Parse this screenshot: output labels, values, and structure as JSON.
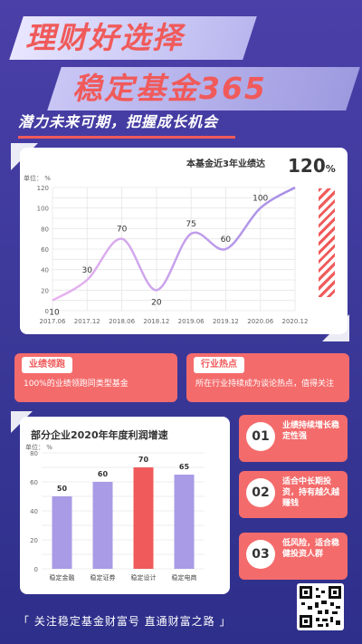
{
  "header": {
    "title_line1": "理财好选择",
    "title_line2": "稳定基金365",
    "subtitle": "潜力未来可期，把握成长机会"
  },
  "line_panel": {
    "title": "本基金近3年业绩达",
    "big_value": "120",
    "big_unit": "%",
    "unit_label": "单位： %"
  },
  "bar_panel": {
    "title": "部分企业2020年年度利润增速",
    "unit_label": "单位： %"
  },
  "cards": {
    "left_tag": "业绩领跑",
    "left_text": "100%的业绩领跑同类型基金",
    "right_tag": "行业热点",
    "right_text": "所在行业持续成为谈论热点，值得关注"
  },
  "list": [
    {
      "num": "01",
      "text": "业绩持续增长稳定性强"
    },
    {
      "num": "02",
      "text": "适合中长期投资，持有越久越赚钱"
    },
    {
      "num": "03",
      "text": "低风险，适合稳健投资人群"
    }
  ],
  "footer": {
    "text": "「 关注稳定基金财富号  直通财富之路 」"
  },
  "colors": {
    "accent": "#f05a5a",
    "purple": "#a99be6",
    "line": "#c39be8"
  },
  "chart_data": [
    {
      "type": "line",
      "title": "本基金近3年业绩达",
      "ylabel": "单位： %",
      "x": [
        "2017.06",
        "2017.12",
        "2018.06",
        "2018.12",
        "2019.06",
        "2019.12",
        "2020.06",
        "2020.12"
      ],
      "series": [
        {
          "values": [
            10,
            30,
            70,
            20,
            75,
            60,
            100,
            120
          ]
        }
      ],
      "data_labels": [
        10,
        30,
        70,
        20,
        75,
        60,
        100
      ],
      "y_ticks": [
        0,
        10,
        20,
        30,
        40,
        50,
        60,
        70,
        80,
        90,
        100,
        110,
        120
      ],
      "ylim": [
        0,
        120
      ],
      "grid": true
    },
    {
      "type": "bar",
      "title": "部分企业2020年年度利润增速",
      "ylabel": "单位： %",
      "categories": [
        "稳定金融",
        "稳定证券",
        "稳定设计",
        "稳定电商"
      ],
      "values": [
        50,
        60,
        70,
        65
      ],
      "highlight_index": 2,
      "y_ticks": [
        0,
        10,
        20,
        30,
        40,
        50,
        60,
        70,
        80
      ],
      "ylim": [
        0,
        80
      ],
      "grid": true
    }
  ]
}
